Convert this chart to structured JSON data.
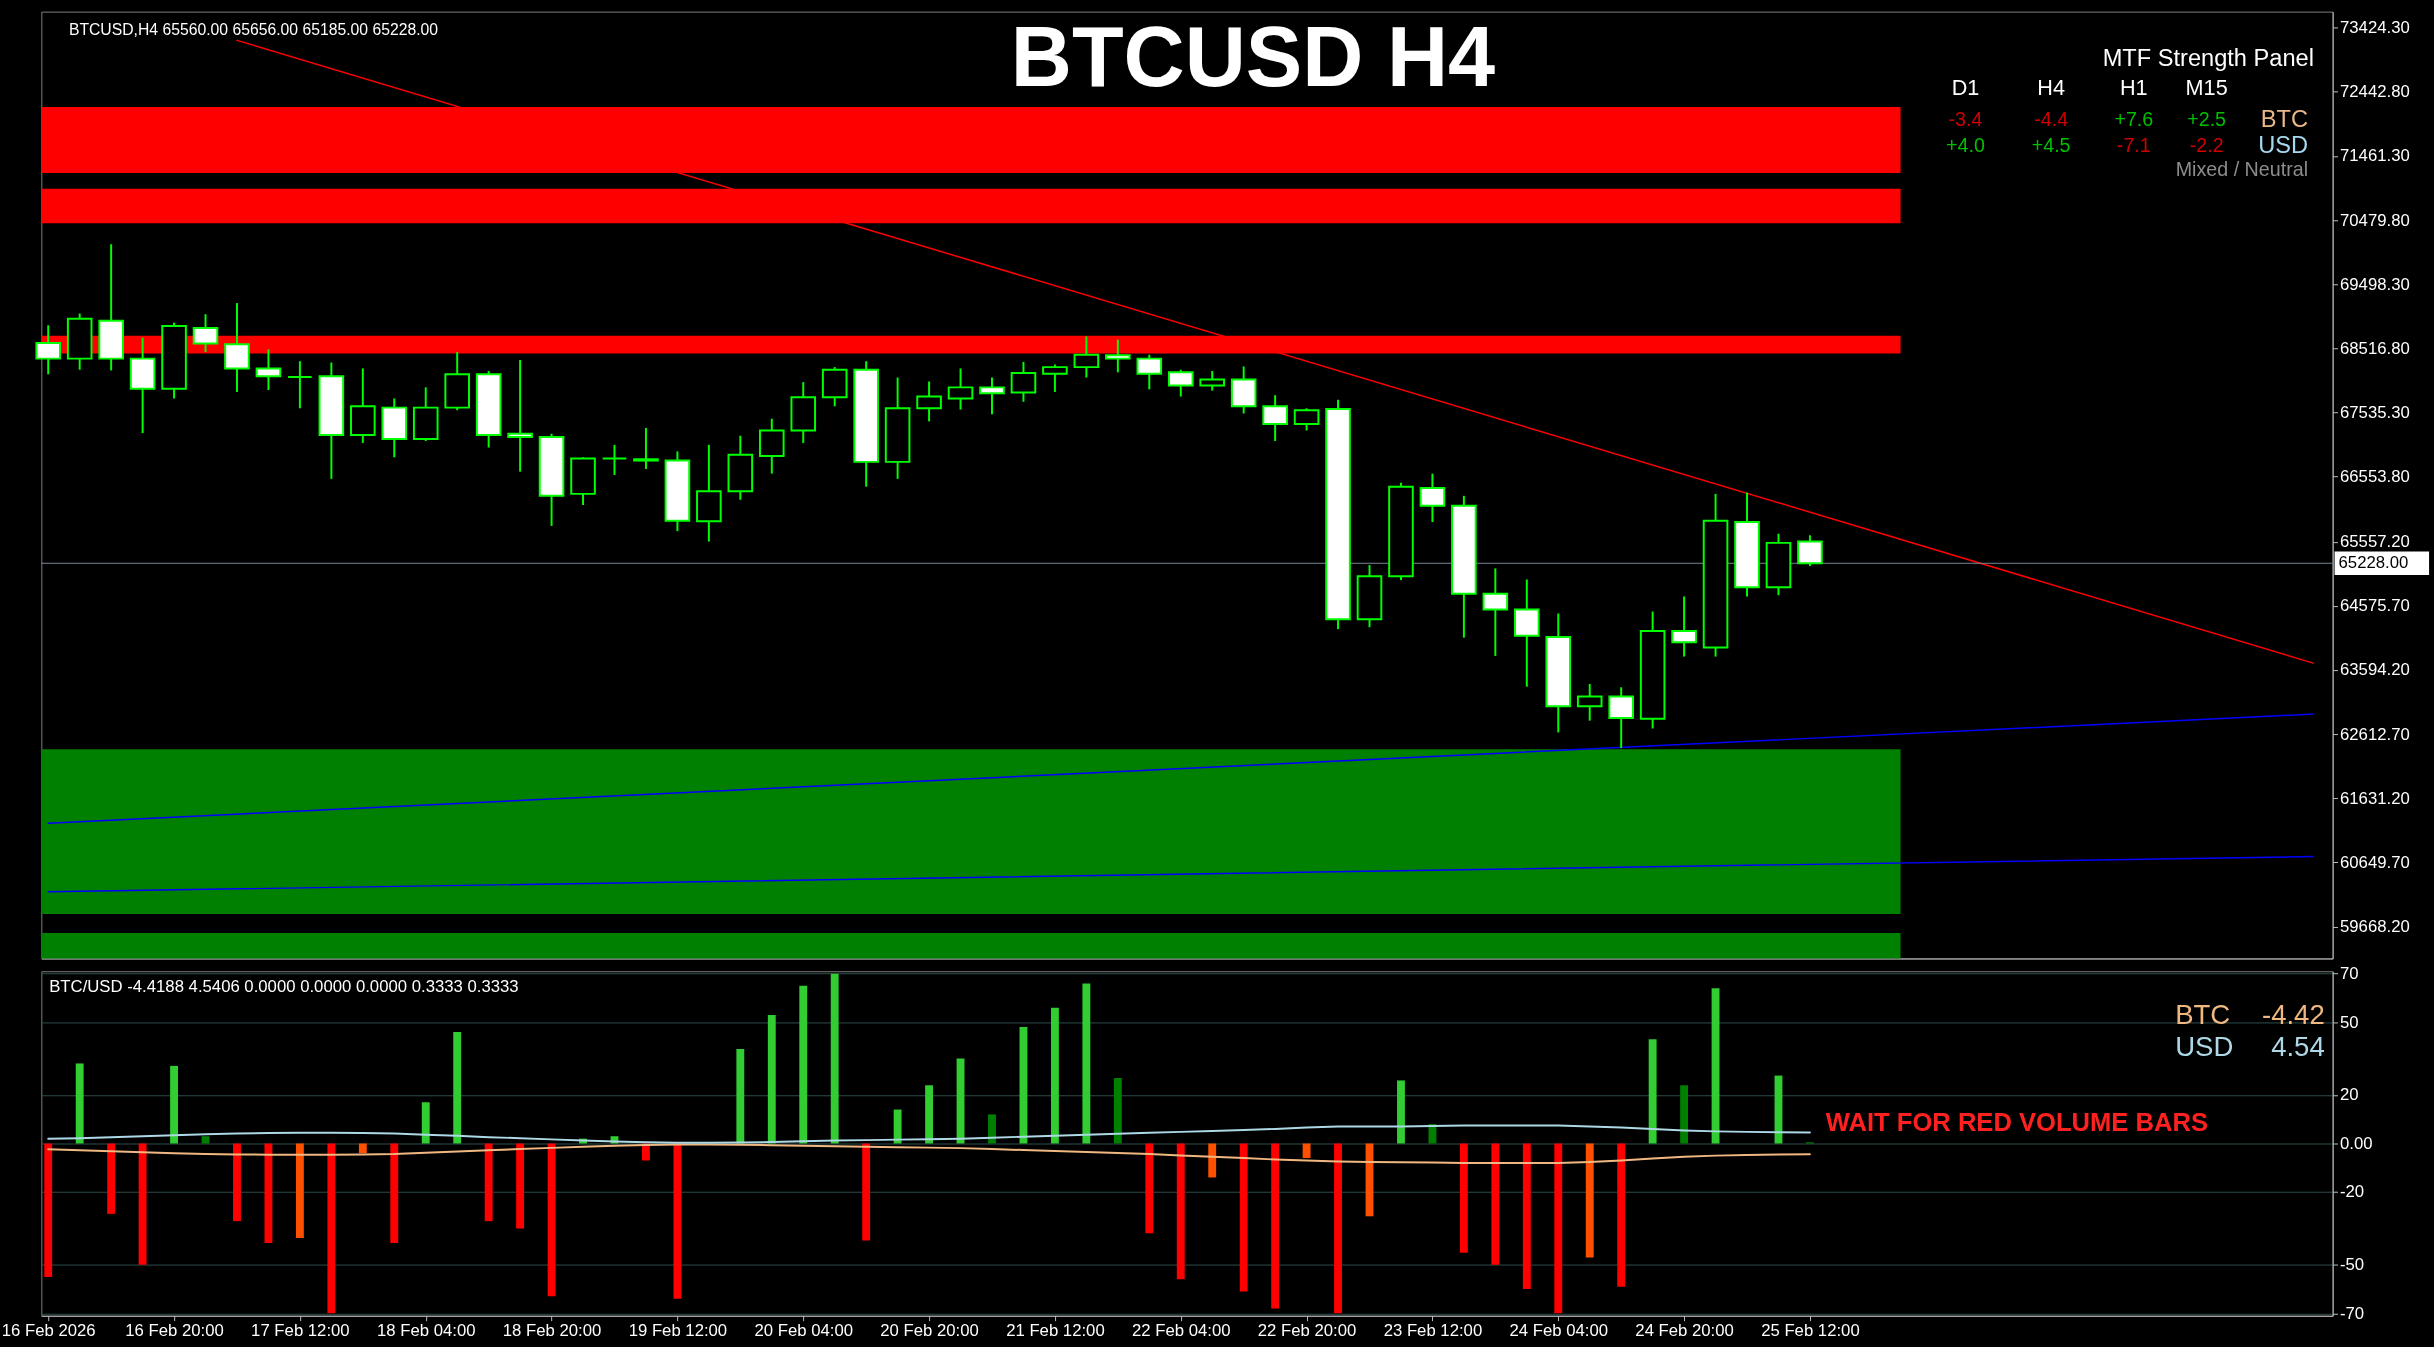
{
  "chart_data": [
    {
      "type": "candlestick",
      "title": "BTCUSD H4",
      "annotations": [
        "BTCUSD,H4  65560.00 65656.00 65185.00 65228.00"
      ],
      "color": "#00ff00",
      "tick_labels": "y",
      "x": [
        "2026-02-16T04:00",
        "2026-02-16T08:00",
        "2026-02-16T12:00",
        "2026-02-16T16:00",
        "2026-02-16T20:00",
        "2026-02-17T00:00",
        "2026-02-17T04:00",
        "2026-02-17T08:00",
        "2026-02-17T12:00",
        "2026-02-17T16:00",
        "2026-02-17T20:00",
        "2026-02-18T00:00",
        "2026-02-18T04:00",
        "2026-02-18T08:00",
        "2026-02-18T12:00",
        "2026-02-18T16:00",
        "2026-02-18T20:00",
        "2026-02-19T00:00",
        "2026-02-19T04:00",
        "2026-02-19T08:00",
        "2026-02-19T12:00",
        "2026-02-19T16:00",
        "2026-02-19T20:00",
        "2026-02-20T00:00",
        "2026-02-20T04:00",
        "2026-02-20T08:00",
        "2026-02-20T12:00",
        "2026-02-20T16:00",
        "2026-02-20T20:00",
        "2026-02-21T00:00",
        "2026-02-21T04:00",
        "2026-02-21T08:00",
        "2026-02-21T12:00",
        "2026-02-21T16:00",
        "2026-02-21T20:00",
        "2026-02-22T00:00",
        "2026-02-22T04:00",
        "2026-02-22T08:00",
        "2026-02-22T12:00",
        "2026-02-22T16:00",
        "2026-02-22T20:00",
        "2026-02-23T00:00",
        "2026-02-23T04:00",
        "2026-02-23T08:00",
        "2026-02-23T12:00",
        "2026-02-23T16:00",
        "2026-02-23T20:00",
        "2026-02-24T00:00",
        "2026-02-24T04:00",
        "2026-02-24T08:00",
        "2026-02-24T12:00",
        "2026-02-24T16:00",
        "2026-02-24T20:00",
        "2026-02-25T00:00",
        "2026-02-25T04:00",
        "2026-02-25T08:00",
        "2026-02-25T12:00"
      ],
      "ohlc": [
        [
          68600,
          68870,
          68120,
          68360
        ],
        [
          68360,
          69050,
          68190,
          68970
        ],
        [
          68940,
          70110,
          68180,
          68360
        ],
        [
          68360,
          68680,
          67220,
          67900
        ],
        [
          67900,
          68910,
          67750,
          68860
        ],
        [
          68830,
          69040,
          68460,
          68590
        ],
        [
          68580,
          69210,
          67850,
          68210
        ],
        [
          68210,
          68500,
          67880,
          68090
        ],
        [
          68080,
          68320,
          67600,
          68080
        ],
        [
          68090,
          68300,
          66520,
          67190
        ],
        [
          67190,
          68210,
          67070,
          67630
        ],
        [
          67610,
          67750,
          66850,
          67130
        ],
        [
          67130,
          67920,
          67100,
          67610
        ],
        [
          67610,
          68460,
          67570,
          68120
        ],
        [
          68120,
          68170,
          67000,
          67190
        ],
        [
          67210,
          68340,
          66630,
          67160
        ],
        [
          67160,
          67210,
          65800,
          66260
        ],
        [
          66290,
          66850,
          66120,
          66830
        ],
        [
          66830,
          67040,
          66580,
          66830
        ],
        [
          66820,
          67300,
          66670,
          66800
        ],
        [
          66800,
          66940,
          65720,
          65880
        ],
        [
          65870,
          67040,
          65560,
          66330
        ],
        [
          66330,
          67180,
          66200,
          66890
        ],
        [
          66870,
          67440,
          66600,
          67260
        ],
        [
          67260,
          68000,
          67070,
          67770
        ],
        [
          67770,
          68230,
          67630,
          68190
        ],
        [
          68190,
          68320,
          66400,
          66780
        ],
        [
          66780,
          68070,
          66520,
          67600
        ],
        [
          67600,
          68010,
          67400,
          67780
        ],
        [
          67750,
          68210,
          67580,
          67920
        ],
        [
          67920,
          68070,
          67510,
          67830
        ],
        [
          67840,
          68310,
          67700,
          68140
        ],
        [
          68130,
          68270,
          67850,
          68230
        ],
        [
          68230,
          68700,
          68070,
          68420
        ],
        [
          68410,
          68650,
          68150,
          68360
        ],
        [
          68360,
          68420,
          67890,
          68130
        ],
        [
          68150,
          68190,
          67780,
          67950
        ],
        [
          67950,
          68170,
          67870,
          68040
        ],
        [
          68040,
          68240,
          67520,
          67630
        ],
        [
          67630,
          67800,
          67100,
          67360
        ],
        [
          67360,
          67600,
          67260,
          67570
        ],
        [
          67590,
          67730,
          64220,
          64370
        ],
        [
          64370,
          65200,
          64250,
          65030
        ],
        [
          65030,
          66460,
          64970,
          66400
        ],
        [
          66380,
          66600,
          65860,
          66110
        ],
        [
          66110,
          66260,
          64090,
          64760
        ],
        [
          64760,
          65150,
          63810,
          64520
        ],
        [
          64520,
          64980,
          63340,
          64120
        ],
        [
          64100,
          64460,
          62640,
          63040
        ],
        [
          63040,
          63380,
          62820,
          63190
        ],
        [
          63190,
          63330,
          62400,
          62860
        ],
        [
          62850,
          64490,
          62700,
          64190
        ],
        [
          64190,
          64720,
          63800,
          64020
        ],
        [
          63940,
          66290,
          63800,
          65880
        ],
        [
          65860,
          66310,
          64720,
          64860
        ],
        [
          64860,
          65680,
          64740,
          65540
        ],
        [
          65560,
          65656,
          65185,
          65228
        ]
      ],
      "series": [
        {
          "type": "line",
          "color": "#ff0000",
          "x": [
            "2026-02-17T04:00",
            "2026-02-28T04:00"
          ],
          "values": [
            73230,
            63700
          ]
        },
        {
          "type": "line",
          "color": "#0000ff",
          "x": [
            "2026-02-16T04:00",
            "2026-02-28T04:00"
          ],
          "values": [
            61250,
            62920
          ]
        },
        {
          "type": "line",
          "color": "#0000ff",
          "x": [
            "2026-02-16T04:00",
            "2026-02-28T04:00"
          ],
          "values": [
            60200,
            60740
          ]
        }
      ],
      "ref_lines": [
        {
          "axis": "y",
          "value": 65228,
          "label": "65228.00",
          "color": "#778899"
        }
      ],
      "bands": [
        {
          "axis": "y",
          "from": 71200,
          "to": 72210,
          "color": "#ff0000"
        },
        {
          "axis": "y",
          "from": 70430,
          "to": 70960,
          "color": "#ff0000"
        },
        {
          "axis": "y",
          "from": 68440,
          "to": 68710,
          "color": "#ff0000"
        },
        {
          "axis": "y",
          "from": 59860,
          "to": 62380,
          "color": "#008000"
        },
        {
          "axis": "y",
          "from": 59180,
          "to": 59570,
          "color": "#008000"
        }
      ],
      "xlim": [
        "2026-02-16T03:45",
        "2026-02-28T05:50"
      ],
      "ylim": [
        59180,
        73670
      ],
      "yticks": [
        {
          "value": 59668.2,
          "label": "59668.20"
        },
        {
          "value": 60649.7,
          "label": "60649.70"
        },
        {
          "value": 61631.2,
          "label": "61631.20"
        },
        {
          "value": 62612.7,
          "label": "62612.70"
        },
        {
          "value": 63594.2,
          "label": "63594.20"
        },
        {
          "value": 64575.7,
          "label": "64575.70"
        },
        {
          "value": 65557.2,
          "label": "65557.20"
        },
        {
          "value": 66553.8,
          "label": "66553.80"
        },
        {
          "value": 67535.3,
          "label": "67535.30"
        },
        {
          "value": 68516.8,
          "label": "68516.80"
        },
        {
          "value": 69498.3,
          "label": "69498.30"
        },
        {
          "value": 70479.8,
          "label": "70479.80"
        },
        {
          "value": 71461.3,
          "label": "71461.30"
        },
        {
          "value": 72442.8,
          "label": "72442.80"
        },
        {
          "value": 73424.3,
          "label": "73424.30"
        }
      ]
    },
    {
      "type": "other",
      "title": "MTF Strength Panel",
      "annotations": [
        "D1",
        "H4",
        "H1",
        "M15",
        "-3.4",
        "-4.4",
        "+7.6",
        "+2.5",
        "BTC",
        "+4.0",
        "+4.5",
        "-7.1",
        "-2.2",
        "USD",
        "Mixed / Neutral"
      ]
    },
    {
      "type": "bar",
      "title": "BTC/USD -4.4188 4.5406 0.0000 0.0000 0.0000 0.3333 0.3333",
      "legend": "right",
      "grid": "y",
      "annotations": [
        "WAIT FOR RED VOLUME BARS",
        "-4.42",
        "4.54"
      ],
      "x": [
        "2026-02-16T04:00",
        "2026-02-16T08:00",
        "2026-02-16T12:00",
        "2026-02-16T16:00",
        "2026-02-16T20:00",
        "2026-02-17T00:00",
        "2026-02-17T04:00",
        "2026-02-17T08:00",
        "2026-02-17T12:00",
        "2026-02-17T16:00",
        "2026-02-17T20:00",
        "2026-02-18T00:00",
        "2026-02-18T04:00",
        "2026-02-18T08:00",
        "2026-02-18T12:00",
        "2026-02-18T16:00",
        "2026-02-18T20:00",
        "2026-02-19T00:00",
        "2026-02-19T04:00",
        "2026-02-19T08:00",
        "2026-02-19T12:00",
        "2026-02-19T16:00",
        "2026-02-19T20:00",
        "2026-02-20T00:00",
        "2026-02-20T04:00",
        "2026-02-20T08:00",
        "2026-02-20T12:00",
        "2026-02-20T16:00",
        "2026-02-20T20:00",
        "2026-02-21T00:00",
        "2026-02-21T04:00",
        "2026-02-21T08:00",
        "2026-02-21T12:00",
        "2026-02-21T16:00",
        "2026-02-21T20:00",
        "2026-02-22T00:00",
        "2026-02-22T04:00",
        "2026-02-22T08:00",
        "2026-02-22T12:00",
        "2026-02-22T16:00",
        "2026-02-22T20:00",
        "2026-02-23T00:00",
        "2026-02-23T04:00",
        "2026-02-23T08:00",
        "2026-02-23T12:00",
        "2026-02-23T16:00",
        "2026-02-23T20:00",
        "2026-02-24T00:00",
        "2026-02-24T04:00",
        "2026-02-24T08:00",
        "2026-02-24T12:00",
        "2026-02-24T16:00",
        "2026-02-24T20:00",
        "2026-02-25T00:00",
        "2026-02-25T04:00",
        "2026-02-25T08:00",
        "2026-02-25T12:00"
      ],
      "series": [
        {
          "type": "bar",
          "values": [
            -55,
            33,
            -29,
            -50,
            32,
            3,
            -32,
            -41,
            -39,
            -70,
            -4,
            -41,
            17,
            46,
            -32,
            -35,
            -63,
            2,
            3,
            -7,
            -64,
            null,
            39,
            53,
            65,
            70,
            -40,
            14,
            24,
            35,
            12,
            48,
            56,
            66,
            27,
            -37,
            -56,
            -14,
            -61,
            -68,
            -6,
            -70,
            -30,
            26,
            8,
            -45,
            -50,
            -60,
            -70,
            -47,
            -59,
            43,
            24,
            64,
            null,
            28,
            0.5
          ],
          "colors": [
            "#ff0000",
            "#32cd32",
            "#ff0000",
            "#ff0000",
            "#32cd32",
            "#008000",
            "#ff0000",
            "#ff0000",
            "#ff5000",
            "#ff0000",
            "#ff5000",
            "#ff0000",
            "#32cd32",
            "#32cd32",
            "#ff0000",
            "#ff0000",
            "#ff0000",
            "#32cd32",
            "#32cd32",
            "#ff0000",
            "#ff0000",
            "#ff5000",
            "#32cd32",
            "#32cd32",
            "#32cd32",
            "#32cd32",
            "#ff0000",
            "#32cd32",
            "#32cd32",
            "#32cd32",
            "#008000",
            "#32cd32",
            "#32cd32",
            "#32cd32",
            "#008000",
            "#ff0000",
            "#ff0000",
            "#ff5000",
            "#ff0000",
            "#ff0000",
            "#ff5000",
            "#ff0000",
            "#ff5000",
            "#32cd32",
            "#008000",
            "#ff0000",
            "#ff0000",
            "#ff0000",
            "#ff0000",
            "#ff5000",
            "#ff0000",
            "#32cd32",
            "#008000",
            "#32cd32",
            "#32cd32",
            "#32cd32",
            "#008000"
          ]
        },
        {
          "type": "line",
          "name": "BTC",
          "color": "#f0b880",
          "values": [
            -2.4,
            -2.8,
            -3.2,
            -3.6,
            -4.0,
            -4.3,
            -4.5,
            -4.6,
            -4.6,
            -4.6,
            -4.5,
            -4.3,
            -3.8,
            -3.3,
            -2.8,
            -2.3,
            -1.8,
            -1.3,
            -0.9,
            -0.6,
            -0.4,
            -0.4,
            -0.5,
            -0.7,
            -0.9,
            -1.1,
            -1.3,
            -1.5,
            -1.7,
            -1.9,
            -2.3,
            -2.7,
            -3.1,
            -3.5,
            -3.9,
            -4.3,
            -4.9,
            -5.5,
            -6.0,
            -6.6,
            -7.0,
            -7.4,
            -7.6,
            -7.7,
            -7.8,
            -8.0,
            -8.0,
            -8.0,
            -8.0,
            -7.6,
            -7.0,
            -6.2,
            -5.5,
            -5.0,
            -4.7,
            -4.5,
            -4.4
          ]
        },
        {
          "type": "line",
          "name": "USD",
          "color": "#add8e6",
          "values": [
            2.0,
            2.2,
            2.6,
            3.0,
            3.4,
            3.8,
            4.1,
            4.3,
            4.4,
            4.4,
            4.3,
            4.1,
            3.6,
            3.2,
            2.6,
            2.2,
            1.7,
            1.2,
            0.8,
            0.5,
            0.3,
            0.3,
            0.4,
            0.6,
            0.9,
            1.2,
            1.4,
            1.6,
            1.8,
            2.0,
            2.4,
            2.8,
            3.2,
            3.6,
            4.0,
            4.4,
            4.8,
            5.2,
            5.6,
            6.0,
            6.6,
            7.0,
            7.0,
            7.0,
            7.2,
            7.4,
            7.4,
            7.4,
            7.4,
            7.0,
            6.6,
            6.0,
            5.4,
            5.0,
            4.8,
            4.6,
            4.5
          ]
        }
      ],
      "xlim": [
        "2026-02-16T03:45",
        "2026-02-28T05:50"
      ],
      "xticks": [
        {
          "value": "2026-02-16T04:00",
          "label": "16 Feb 2026"
        },
        {
          "value": "2026-02-16T20:00",
          "label": "16 Feb 20:00"
        },
        {
          "value": "2026-02-17T12:00",
          "label": "17 Feb 12:00"
        },
        {
          "value": "2026-02-18T04:00",
          "label": "18 Feb 04:00"
        },
        {
          "value": "2026-02-18T20:00",
          "label": "18 Feb 20:00"
        },
        {
          "value": "2026-02-19T12:00",
          "label": "19 Feb 12:00"
        },
        {
          "value": "2026-02-20T04:00",
          "label": "20 Feb 04:00"
        },
        {
          "value": "2026-02-20T20:00",
          "label": "20 Feb 20:00"
        },
        {
          "value": "2026-02-21T12:00",
          "label": "21 Feb 12:00"
        },
        {
          "value": "2026-02-22T04:00",
          "label": "22 Feb 04:00"
        },
        {
          "value": "2026-02-22T20:00",
          "label": "22 Feb 20:00"
        },
        {
          "value": "2026-02-23T12:00",
          "label": "23 Feb 12:00"
        },
        {
          "value": "2026-02-24T04:00",
          "label": "24 Feb 04:00"
        },
        {
          "value": "2026-02-24T20:00",
          "label": "24 Feb 20:00"
        },
        {
          "value": "2026-02-25T12:00",
          "label": "25 Feb 12:00"
        }
      ],
      "ylim": [
        -71,
        71
      ],
      "yticks": [
        70,
        50,
        20,
        {
          "value": 0,
          "label": "0.00"
        },
        -20,
        -50,
        -70
      ]
    }
  ]
}
